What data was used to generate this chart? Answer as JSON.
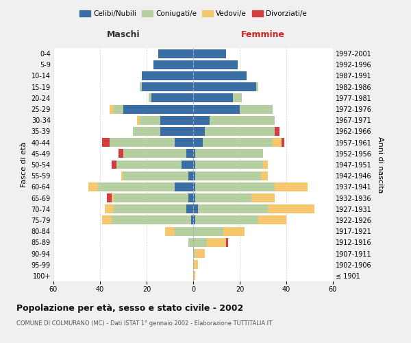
{
  "age_groups": [
    "100+",
    "95-99",
    "90-94",
    "85-89",
    "80-84",
    "75-79",
    "70-74",
    "65-69",
    "60-64",
    "55-59",
    "50-54",
    "45-49",
    "40-44",
    "35-39",
    "30-34",
    "25-29",
    "20-24",
    "15-19",
    "10-14",
    "5-9",
    "0-4"
  ],
  "birth_years": [
    "≤ 1901",
    "1902-1906",
    "1907-1911",
    "1912-1916",
    "1917-1921",
    "1922-1926",
    "1927-1931",
    "1932-1936",
    "1937-1941",
    "1942-1946",
    "1947-1951",
    "1952-1956",
    "1957-1961",
    "1962-1966",
    "1967-1971",
    "1972-1976",
    "1977-1981",
    "1982-1986",
    "1987-1991",
    "1992-1996",
    "1997-2001"
  ],
  "colors": {
    "celibi": "#3a6ea5",
    "coniugati": "#b5cfa0",
    "vedovi": "#f5c76e",
    "divorziati": "#d43d3d"
  },
  "maschi": {
    "celibi": [
      0,
      0,
      0,
      0,
      0,
      1,
      3,
      2,
      8,
      2,
      5,
      3,
      8,
      14,
      14,
      30,
      18,
      22,
      22,
      17,
      15
    ],
    "coniugati": [
      0,
      0,
      0,
      2,
      8,
      34,
      31,
      32,
      33,
      28,
      28,
      27,
      28,
      12,
      9,
      4,
      1,
      1,
      0,
      0,
      0
    ],
    "vedovi": [
      0,
      0,
      0,
      0,
      4,
      4,
      4,
      1,
      4,
      1,
      0,
      0,
      0,
      0,
      1,
      2,
      0,
      0,
      0,
      0,
      0
    ],
    "divorziati": [
      0,
      0,
      0,
      0,
      0,
      0,
      0,
      2,
      0,
      0,
      2,
      2,
      3,
      0,
      0,
      0,
      0,
      0,
      0,
      0,
      0
    ]
  },
  "femmine": {
    "celibi": [
      0,
      0,
      0,
      0,
      0,
      1,
      2,
      1,
      1,
      1,
      1,
      1,
      4,
      5,
      7,
      20,
      17,
      27,
      23,
      19,
      14
    ],
    "coniugati": [
      0,
      0,
      1,
      6,
      13,
      27,
      30,
      24,
      34,
      28,
      29,
      29,
      30,
      30,
      28,
      14,
      4,
      1,
      0,
      0,
      0
    ],
    "vedovi": [
      1,
      2,
      4,
      8,
      9,
      12,
      20,
      10,
      14,
      3,
      2,
      0,
      4,
      0,
      0,
      0,
      0,
      0,
      0,
      0,
      0
    ],
    "divorziati": [
      0,
      0,
      0,
      1,
      0,
      0,
      0,
      0,
      0,
      0,
      0,
      0,
      1,
      2,
      0,
      0,
      0,
      0,
      0,
      0,
      0
    ]
  },
  "xlim": 60,
  "title": "Popolazione per età, sesso e stato civile - 2002",
  "subtitle": "COMUNE DI COLMURANO (MC) - Dati ISTAT 1° gennaio 2002 - Elaborazione TUTTITALIA.IT",
  "ylabel_left": "Fasce di età",
  "ylabel_right": "Anni di nascita",
  "xlabel_maschi": "Maschi",
  "xlabel_femmine": "Femmine",
  "legend_labels": [
    "Celibi/Nubili",
    "Coniugati/e",
    "Vedovi/e",
    "Divorziati/e"
  ],
  "background_color": "#f0f0f0",
  "plot_bg": "#ffffff"
}
